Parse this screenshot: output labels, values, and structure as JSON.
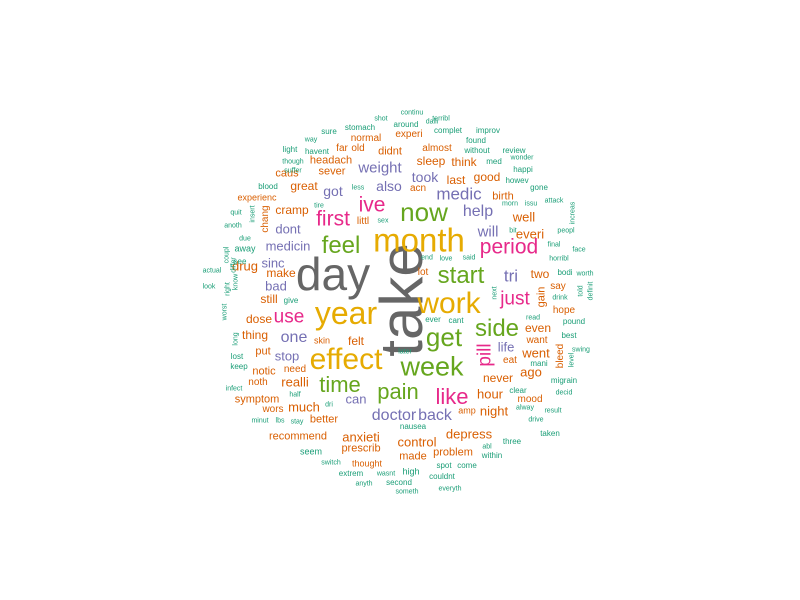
{
  "palette": {
    "teal": "#1b9e77",
    "orange": "#d95f02",
    "purple": "#7570b3",
    "magenta": "#e7298a",
    "green": "#66a61e",
    "gold": "#e6ab02",
    "gray": "#666666"
  },
  "words": [
    {
      "text": "take",
      "color": "gray",
      "vertical": true
    },
    {
      "text": "day",
      "color": "gray"
    },
    {
      "text": "month",
      "color": "gold"
    },
    {
      "text": "year",
      "color": "gold"
    },
    {
      "text": "effect",
      "color": "gold"
    },
    {
      "text": "work",
      "color": "gold"
    },
    {
      "text": "week",
      "color": "green"
    },
    {
      "text": "now",
      "color": "green"
    },
    {
      "text": "feel",
      "color": "green"
    },
    {
      "text": "start",
      "color": "green"
    },
    {
      "text": "side",
      "color": "green"
    },
    {
      "text": "get",
      "color": "green"
    },
    {
      "text": "time",
      "color": "green"
    },
    {
      "text": "pain",
      "color": "green"
    },
    {
      "text": "like",
      "color": "magenta"
    },
    {
      "text": "first",
      "color": "magenta"
    },
    {
      "text": "ive",
      "color": "magenta"
    },
    {
      "text": "period",
      "color": "magenta"
    },
    {
      "text": "use",
      "color": "magenta"
    },
    {
      "text": "just",
      "color": "magenta"
    },
    {
      "text": "pill",
      "color": "magenta",
      "vertical": true
    },
    {
      "text": "medic",
      "color": "purple"
    },
    {
      "text": "weight",
      "color": "purple"
    },
    {
      "text": "help",
      "color": "purple"
    },
    {
      "text": "will",
      "color": "purple"
    },
    {
      "text": "tri",
      "color": "purple"
    },
    {
      "text": "doctor",
      "color": "purple"
    },
    {
      "text": "back",
      "color": "purple"
    },
    {
      "text": "one",
      "color": "purple"
    },
    {
      "text": "got",
      "color": "purple"
    },
    {
      "text": "also",
      "color": "purple"
    },
    {
      "text": "took",
      "color": "purple"
    },
    {
      "text": "dont",
      "color": "purple"
    },
    {
      "text": "medicin",
      "color": "purple"
    },
    {
      "text": "sinc",
      "color": "purple"
    },
    {
      "text": "bad",
      "color": "purple"
    },
    {
      "text": "stop",
      "color": "purple"
    },
    {
      "text": "can",
      "color": "purple"
    },
    {
      "text": "life",
      "color": "purple"
    },
    {
      "text": "anxieti",
      "color": "orange"
    },
    {
      "text": "depress",
      "color": "orange"
    },
    {
      "text": "control",
      "color": "orange"
    },
    {
      "text": "night",
      "color": "orange"
    },
    {
      "text": "hour",
      "color": "orange"
    },
    {
      "text": "never",
      "color": "orange"
    },
    {
      "text": "ago",
      "color": "orange"
    },
    {
      "text": "went",
      "color": "orange"
    },
    {
      "text": "even",
      "color": "orange"
    },
    {
      "text": "much",
      "color": "orange"
    },
    {
      "text": "realli",
      "color": "orange"
    },
    {
      "text": "still",
      "color": "orange"
    },
    {
      "text": "make",
      "color": "orange"
    },
    {
      "text": "drug",
      "color": "orange"
    },
    {
      "text": "cramp",
      "color": "orange"
    },
    {
      "text": "great",
      "color": "orange"
    },
    {
      "text": "sever",
      "color": "orange"
    },
    {
      "text": "sleep",
      "color": "orange"
    },
    {
      "text": "think",
      "color": "orange"
    },
    {
      "text": "last",
      "color": "orange"
    },
    {
      "text": "good",
      "color": "orange"
    },
    {
      "text": "acn",
      "color": "orange"
    },
    {
      "text": "didnt",
      "color": "orange"
    },
    {
      "text": "almost",
      "color": "orange"
    },
    {
      "text": "headach",
      "color": "orange"
    },
    {
      "text": "normal",
      "color": "orange"
    },
    {
      "text": "experi",
      "color": "orange"
    },
    {
      "text": "far",
      "color": "orange"
    },
    {
      "text": "old",
      "color": "orange"
    },
    {
      "text": "caus",
      "color": "orange"
    },
    {
      "text": "birth",
      "color": "orange"
    },
    {
      "text": "everi",
      "color": "orange"
    },
    {
      "text": "well",
      "color": "orange"
    },
    {
      "text": "two",
      "color": "orange"
    },
    {
      "text": "gain",
      "color": "orange",
      "vertical": true
    },
    {
      "text": "say",
      "color": "orange"
    },
    {
      "text": "hope",
      "color": "orange"
    },
    {
      "text": "want",
      "color": "orange"
    },
    {
      "text": "eat",
      "color": "orange"
    },
    {
      "text": "bleed",
      "color": "orange",
      "vertical": true
    },
    {
      "text": "mood",
      "color": "orange"
    },
    {
      "text": "dose",
      "color": "orange"
    },
    {
      "text": "thing",
      "color": "orange"
    },
    {
      "text": "put",
      "color": "orange"
    },
    {
      "text": "notic",
      "color": "orange"
    },
    {
      "text": "need",
      "color": "orange"
    },
    {
      "text": "noth",
      "color": "orange"
    },
    {
      "text": "symptom",
      "color": "orange"
    },
    {
      "text": "wors",
      "color": "orange"
    },
    {
      "text": "better",
      "color": "orange"
    },
    {
      "text": "recommend",
      "color": "orange"
    },
    {
      "text": "prescrib",
      "color": "orange"
    },
    {
      "text": "made",
      "color": "orange"
    },
    {
      "text": "problem",
      "color": "orange"
    },
    {
      "text": "felt",
      "color": "orange"
    },
    {
      "text": "lot",
      "color": "orange"
    },
    {
      "text": "littl",
      "color": "orange"
    },
    {
      "text": "amp",
      "color": "orange"
    },
    {
      "text": "thought",
      "color": "orange"
    },
    {
      "text": "chang",
      "color": "orange",
      "vertical": true
    },
    {
      "text": "experienc",
      "color": "orange"
    },
    {
      "text": "skin",
      "color": "orange"
    },
    {
      "text": "continu",
      "color": "teal"
    },
    {
      "text": "shot",
      "color": "teal"
    },
    {
      "text": "terribl",
      "color": "teal"
    },
    {
      "text": "daili",
      "color": "teal"
    },
    {
      "text": "around",
      "color": "teal"
    },
    {
      "text": "sure",
      "color": "teal"
    },
    {
      "text": "stomach",
      "color": "teal"
    },
    {
      "text": "complet",
      "color": "teal"
    },
    {
      "text": "improv",
      "color": "teal"
    },
    {
      "text": "way",
      "color": "teal"
    },
    {
      "text": "found",
      "color": "teal"
    },
    {
      "text": "light",
      "color": "teal"
    },
    {
      "text": "havent",
      "color": "teal"
    },
    {
      "text": "without",
      "color": "teal"
    },
    {
      "text": "review",
      "color": "teal"
    },
    {
      "text": "though",
      "color": "teal"
    },
    {
      "text": "med",
      "color": "teal"
    },
    {
      "text": "wonder",
      "color": "teal"
    },
    {
      "text": "happi",
      "color": "teal"
    },
    {
      "text": "suffer",
      "color": "teal"
    },
    {
      "text": "howev",
      "color": "teal"
    },
    {
      "text": "blood",
      "color": "teal"
    },
    {
      "text": "less",
      "color": "teal"
    },
    {
      "text": "gone",
      "color": "teal"
    },
    {
      "text": "tire",
      "color": "teal"
    },
    {
      "text": "attack",
      "color": "teal"
    },
    {
      "text": "morn",
      "color": "teal"
    },
    {
      "text": "issu",
      "color": "teal"
    },
    {
      "text": "quit",
      "color": "teal"
    },
    {
      "text": "insert",
      "color": "teal",
      "vertical": true
    },
    {
      "text": "sex",
      "color": "teal"
    },
    {
      "text": "increas",
      "color": "teal",
      "vertical": true
    },
    {
      "text": "anoth",
      "color": "teal"
    },
    {
      "text": "bit",
      "color": "teal"
    },
    {
      "text": "peopl",
      "color": "teal"
    },
    {
      "text": "due",
      "color": "teal"
    },
    {
      "text": "final",
      "color": "teal"
    },
    {
      "text": "away",
      "color": "teal"
    },
    {
      "text": "face",
      "color": "teal"
    },
    {
      "text": "see",
      "color": "teal"
    },
    {
      "text": "end",
      "color": "teal"
    },
    {
      "text": "love",
      "color": "teal"
    },
    {
      "text": "said",
      "color": "teal"
    },
    {
      "text": "horribl",
      "color": "teal"
    },
    {
      "text": "actual",
      "color": "teal"
    },
    {
      "text": "coupl",
      "color": "teal",
      "vertical": true
    },
    {
      "text": "differ",
      "color": "teal",
      "vertical": true
    },
    {
      "text": "know",
      "color": "teal",
      "vertical": true
    },
    {
      "text": "bodi",
      "color": "teal"
    },
    {
      "text": "worth",
      "color": "teal"
    },
    {
      "text": "look",
      "color": "teal"
    },
    {
      "text": "right",
      "color": "teal",
      "vertical": true
    },
    {
      "text": "next",
      "color": "teal",
      "vertical": true
    },
    {
      "text": "drink",
      "color": "teal"
    },
    {
      "text": "told",
      "color": "teal",
      "vertical": true
    },
    {
      "text": "definit",
      "color": "teal",
      "vertical": true
    },
    {
      "text": "give",
      "color": "teal"
    },
    {
      "text": "read",
      "color": "teal"
    },
    {
      "text": "pound",
      "color": "teal"
    },
    {
      "text": "ever",
      "color": "teal"
    },
    {
      "text": "cant",
      "color": "teal"
    },
    {
      "text": "best",
      "color": "teal"
    },
    {
      "text": "worst",
      "color": "teal",
      "vertical": true
    },
    {
      "text": "long",
      "color": "teal",
      "vertical": true
    },
    {
      "text": "swing",
      "color": "teal"
    },
    {
      "text": "mani",
      "color": "teal"
    },
    {
      "text": "lost",
      "color": "teal"
    },
    {
      "text": "keep",
      "color": "teal"
    },
    {
      "text": "later",
      "color": "teal"
    },
    {
      "text": "level",
      "color": "teal",
      "vertical": true
    },
    {
      "text": "clear",
      "color": "teal"
    },
    {
      "text": "migrain",
      "color": "teal"
    },
    {
      "text": "infect",
      "color": "teal"
    },
    {
      "text": "decid",
      "color": "teal"
    },
    {
      "text": "half",
      "color": "teal"
    },
    {
      "text": "dri",
      "color": "teal"
    },
    {
      "text": "alway",
      "color": "teal"
    },
    {
      "text": "result",
      "color": "teal"
    },
    {
      "text": "lbs",
      "color": "teal"
    },
    {
      "text": "minut",
      "color": "teal"
    },
    {
      "text": "stay",
      "color": "teal"
    },
    {
      "text": "drive",
      "color": "teal"
    },
    {
      "text": "nausea",
      "color": "teal"
    },
    {
      "text": "taken",
      "color": "teal"
    },
    {
      "text": "abl",
      "color": "teal"
    },
    {
      "text": "three",
      "color": "teal"
    },
    {
      "text": "seem",
      "color": "teal"
    },
    {
      "text": "within",
      "color": "teal"
    },
    {
      "text": "switch",
      "color": "teal"
    },
    {
      "text": "spot",
      "color": "teal"
    },
    {
      "text": "come",
      "color": "teal"
    },
    {
      "text": "extrem",
      "color": "teal"
    },
    {
      "text": "wasnt",
      "color": "teal"
    },
    {
      "text": "high",
      "color": "teal"
    },
    {
      "text": "couldnt",
      "color": "teal"
    },
    {
      "text": "anyth",
      "color": "teal"
    },
    {
      "text": "second",
      "color": "teal"
    },
    {
      "text": "everyth",
      "color": "teal"
    },
    {
      "text": "someth",
      "color": "teal"
    }
  ]
}
